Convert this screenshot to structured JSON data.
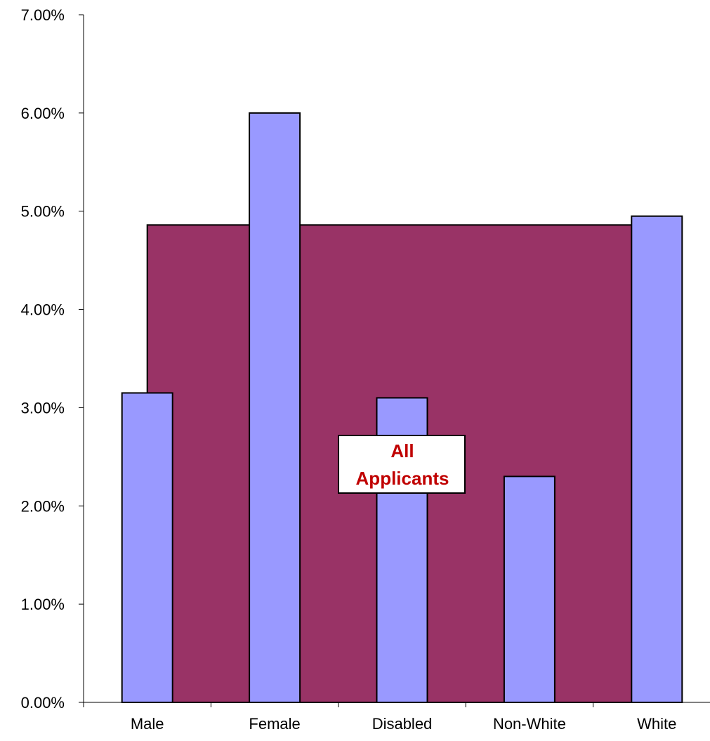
{
  "chart_data": {
    "type": "bar",
    "title": "",
    "xlabel": "",
    "ylabel": "",
    "categories": [
      "Male",
      "Female",
      "Disabled",
      "Non-White",
      "White"
    ],
    "series": [
      {
        "values": [
          3.15,
          6.0,
          3.1,
          2.3,
          4.95
        ],
        "color": "#9999ff"
      }
    ],
    "background_area": {
      "label": "All Applicants",
      "value": 4.86,
      "color": "#993366"
    },
    "annotation": {
      "lines": [
        "All",
        "Applicants"
      ],
      "text_color": "#c00000"
    },
    "ylim": [
      0,
      7
    ],
    "y_ticks": [
      0,
      1,
      2,
      3,
      4,
      5,
      6,
      7
    ],
    "y_tick_labels": [
      "0.00%",
      "1.00%",
      "2.00%",
      "3.00%",
      "4.00%",
      "5.00%",
      "6.00%",
      "7.00%"
    ],
    "grid": false,
    "legend": "none"
  }
}
